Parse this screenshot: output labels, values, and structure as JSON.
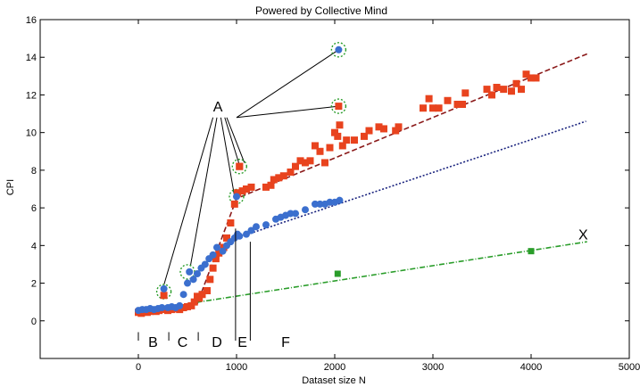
{
  "chart_data": {
    "type": "scatter",
    "title": "Powered by Collective Mind",
    "xlabel": "Dataset size N",
    "ylabel": "CPI",
    "xlim": [
      -1000,
      5000
    ],
    "ylim": [
      -2,
      16
    ],
    "x_ticks": [
      0,
      1000,
      2000,
      3000,
      4000,
      5000
    ],
    "y_ticks": [
      0,
      2,
      4,
      6,
      8,
      10,
      12,
      14,
      16
    ],
    "x_tick_labels": [
      "0",
      "1000",
      "2000",
      "3000",
      "4000",
      "5000"
    ],
    "y_tick_labels": [
      "0",
      "2",
      "4",
      "6",
      "8",
      "10",
      "12",
      "14",
      "16"
    ],
    "grid": false,
    "series": [
      {
        "color": "#e8431e",
        "marker": "square",
        "points": [
          [
            0,
            0.45
          ],
          [
            30,
            0.4
          ],
          [
            60,
            0.5
          ],
          [
            90,
            0.45
          ],
          [
            120,
            0.5
          ],
          [
            150,
            0.55
          ],
          [
            180,
            0.5
          ],
          [
            210,
            0.55
          ],
          [
            240,
            0.6
          ],
          [
            260,
            1.35
          ],
          [
            300,
            0.55
          ],
          [
            340,
            0.6
          ],
          [
            380,
            0.65
          ],
          [
            420,
            0.6
          ],
          [
            460,
            0.7
          ],
          [
            500,
            0.75
          ],
          [
            540,
            0.8
          ],
          [
            570,
            1.0
          ],
          [
            600,
            1.3
          ],
          [
            620,
            1.2
          ],
          [
            650,
            1.4
          ],
          [
            700,
            1.6
          ],
          [
            730,
            2.2
          ],
          [
            760,
            2.8
          ],
          [
            790,
            3.3
          ],
          [
            820,
            3.6
          ],
          [
            870,
            3.9
          ],
          [
            900,
            4.4
          ],
          [
            940,
            5.2
          ],
          [
            980,
            6.2
          ],
          [
            1010,
            6.8
          ],
          [
            1030,
            8.2
          ],
          [
            1060,
            6.9
          ],
          [
            1100,
            7.0
          ],
          [
            1150,
            7.1
          ],
          [
            1300,
            7.1
          ],
          [
            1350,
            7.2
          ],
          [
            1380,
            7.5
          ],
          [
            1430,
            7.6
          ],
          [
            1480,
            7.7
          ],
          [
            1550,
            7.9
          ],
          [
            1600,
            8.2
          ],
          [
            1650,
            8.5
          ],
          [
            1700,
            8.4
          ],
          [
            1750,
            8.5
          ],
          [
            1800,
            9.3
          ],
          [
            1850,
            9.0
          ],
          [
            1900,
            8.4
          ],
          [
            1950,
            9.2
          ],
          [
            2000,
            10.0
          ],
          [
            2030,
            9.8
          ],
          [
            2050,
            10.4
          ],
          [
            2080,
            9.3
          ],
          [
            2120,
            9.6
          ],
          [
            2200,
            9.6
          ],
          [
            2300,
            9.8
          ],
          [
            2350,
            10.1
          ],
          [
            2450,
            10.3
          ],
          [
            2500,
            10.2
          ],
          [
            2620,
            10.1
          ],
          [
            2650,
            10.3
          ],
          [
            2900,
            11.3
          ],
          [
            2960,
            11.8
          ],
          [
            3000,
            11.3
          ],
          [
            3060,
            11.3
          ],
          [
            3150,
            11.7
          ],
          [
            3250,
            11.5
          ],
          [
            3300,
            11.5
          ],
          [
            3330,
            12.1
          ],
          [
            3550,
            12.3
          ],
          [
            3600,
            12.0
          ],
          [
            3650,
            12.4
          ],
          [
            3720,
            12.3
          ],
          [
            3800,
            12.2
          ],
          [
            3850,
            12.6
          ],
          [
            3900,
            12.3
          ],
          [
            3950,
            13.1
          ],
          [
            4000,
            12.9
          ],
          [
            4050,
            12.9
          ],
          [
            2040,
            11.4
          ],
          [
            1030,
            8.2
          ]
        ]
      },
      {
        "color": "#3b6fce",
        "marker": "circle",
        "points": [
          [
            0,
            0.55
          ],
          [
            40,
            0.6
          ],
          [
            80,
            0.6
          ],
          [
            120,
            0.65
          ],
          [
            160,
            0.6
          ],
          [
            200,
            0.65
          ],
          [
            240,
            0.7
          ],
          [
            260,
            1.7
          ],
          [
            300,
            0.7
          ],
          [
            340,
            0.75
          ],
          [
            380,
            0.7
          ],
          [
            420,
            0.8
          ],
          [
            460,
            1.4
          ],
          [
            500,
            2.0
          ],
          [
            520,
            2.6
          ],
          [
            560,
            2.2
          ],
          [
            600,
            2.5
          ],
          [
            640,
            2.8
          ],
          [
            680,
            3.0
          ],
          [
            720,
            3.3
          ],
          [
            760,
            3.5
          ],
          [
            800,
            3.9
          ],
          [
            860,
            3.7
          ],
          [
            900,
            4.0
          ],
          [
            940,
            4.2
          ],
          [
            980,
            4.4
          ],
          [
            1010,
            4.6
          ],
          [
            1030,
            4.5
          ],
          [
            1000,
            6.6
          ],
          [
            1100,
            4.6
          ],
          [
            1150,
            4.8
          ],
          [
            1200,
            5.0
          ],
          [
            1300,
            5.1
          ],
          [
            1400,
            5.4
          ],
          [
            1450,
            5.5
          ],
          [
            1500,
            5.6
          ],
          [
            1550,
            5.7
          ],
          [
            1600,
            5.7
          ],
          [
            1700,
            5.9
          ],
          [
            1800,
            6.2
          ],
          [
            1850,
            6.2
          ],
          [
            1900,
            6.2
          ],
          [
            1950,
            6.3
          ],
          [
            2000,
            6.3
          ],
          [
            2050,
            6.4
          ],
          [
            2040,
            14.4
          ]
        ]
      },
      {
        "color": "#2a9d2a",
        "marker": "square",
        "points": [
          [
            2030,
            2.5
          ],
          [
            4000,
            3.7
          ]
        ]
      }
    ],
    "trend_lines": [
      {
        "color": "#8b1a1a",
        "style": "dashed",
        "points": [
          [
            0,
            0.35
          ],
          [
            600,
            0.9
          ],
          [
            1000,
            6.5
          ],
          [
            4580,
            14.2
          ]
        ]
      },
      {
        "color": "#1a237e",
        "style": "dotted",
        "points": [
          [
            1000,
            4.4
          ],
          [
            4560,
            10.6
          ]
        ]
      },
      {
        "color": "#2a9d2a",
        "style": "dashdot",
        "points": [
          [
            0,
            0.5
          ],
          [
            4570,
            4.2
          ]
        ]
      }
    ],
    "segment_labels": [
      {
        "text": "B",
        "x": 150,
        "y": -1.1
      },
      {
        "text": "C",
        "x": 450,
        "y": -1.1
      },
      {
        "text": "D",
        "x": 800,
        "y": -1.1
      },
      {
        "text": "E",
        "x": 1060,
        "y": -1.1
      },
      {
        "text": "F",
        "x": 1500,
        "y": -1.1
      }
    ],
    "segment_dividers": [
      {
        "x": 0,
        "y_from": -2,
        "y_to": -0.6
      },
      {
        "x": 310,
        "y_from": -2,
        "y_to": -0.6
      },
      {
        "x": 610,
        "y_from": -2,
        "y_to": -0.6
      },
      {
        "x": 990,
        "y_from": -2,
        "y_to": 4.9
      },
      {
        "x": 1140,
        "y_from": -2,
        "y_to": 4.2
      }
    ],
    "label_X": {
      "text": "X",
      "x": 4530,
      "y": 4.6
    },
    "label_A": {
      "text": "A",
      "x": 810,
      "y": 11.4
    },
    "callout_lines": [
      [
        [
          1000,
          10.8
        ],
        [
          2040,
          14.4
        ]
      ],
      [
        [
          1000,
          10.8
        ],
        [
          2040,
          11.4
        ]
      ],
      [
        [
          760,
          10.8
        ],
        [
          260,
          1.9
        ]
      ],
      [
        [
          800,
          10.8
        ],
        [
          530,
          2.9
        ]
      ],
      [
        [
          840,
          10.8
        ],
        [
          980,
          6.6
        ]
      ],
      [
        [
          880,
          10.8
        ],
        [
          1040,
          8.1
        ]
      ],
      [
        [
          900,
          10.8
        ],
        [
          1080,
          8.4
        ]
      ]
    ],
    "highlight_circles": [
      [
        2040,
        14.4
      ],
      [
        2040,
        11.4
      ],
      [
        1030,
        8.2
      ],
      [
        1000,
        6.6
      ],
      [
        500,
        2.6
      ],
      [
        260,
        1.55
      ]
    ]
  }
}
